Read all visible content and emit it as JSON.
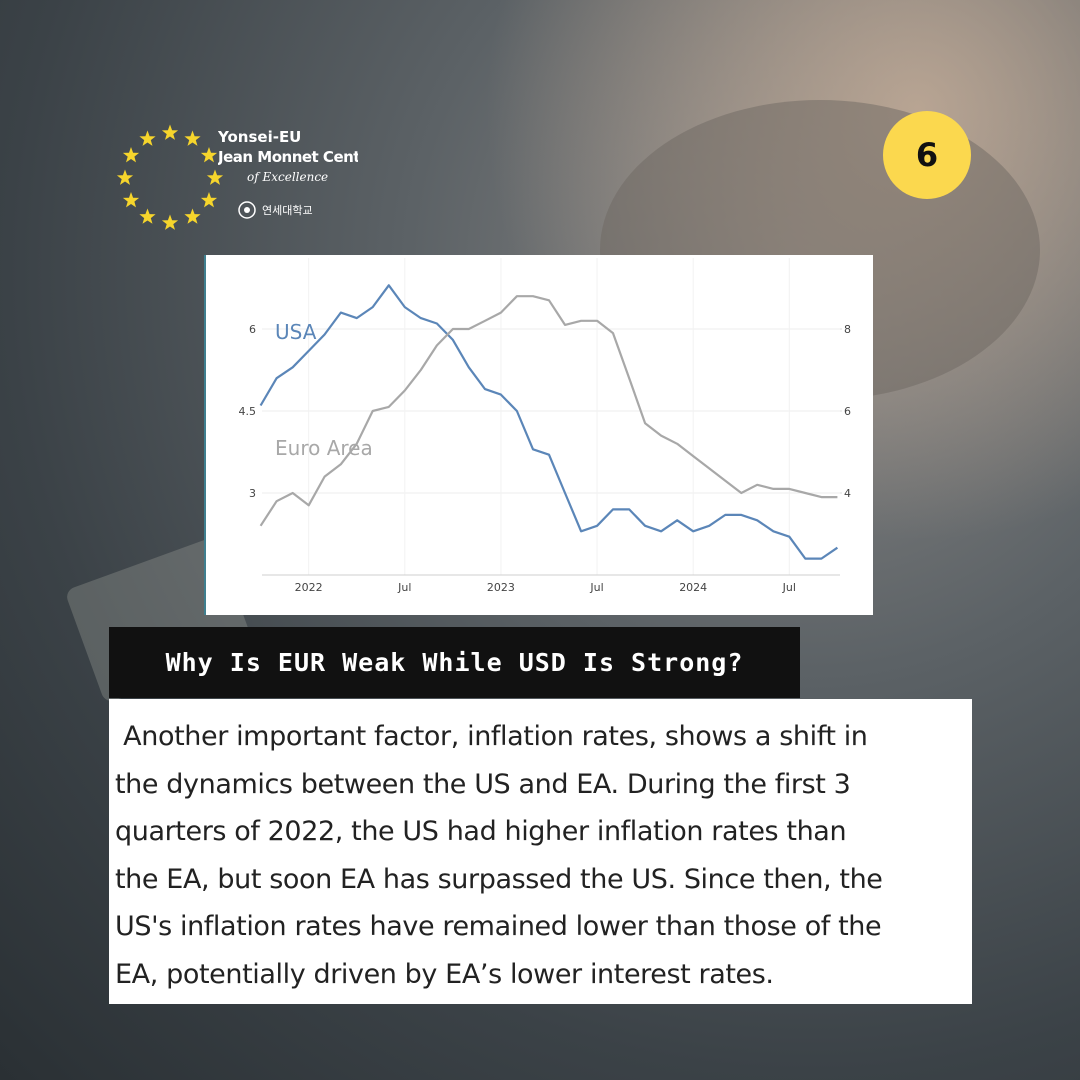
{
  "logo": {
    "line1": "Yonsei-EU",
    "line2": "Jean Monnet Centre",
    "line3": "of Excellence",
    "university": "연세대학교"
  },
  "page_number": "6",
  "chart_data": {
    "type": "line",
    "x": [
      2021.75,
      2021.833,
      2021.917,
      2022,
      2022.083,
      2022.167,
      2022.25,
      2022.333,
      2022.417,
      2022.5,
      2022.583,
      2022.667,
      2022.75,
      2022.833,
      2022.917,
      2023,
      2023.083,
      2023.167,
      2023.25,
      2023.333,
      2023.417,
      2023.5,
      2023.583,
      2023.667,
      2023.75,
      2023.833,
      2023.917,
      2024,
      2024.083,
      2024.167,
      2024.25,
      2024.333,
      2024.417,
      2024.5,
      2024.583,
      2024.667,
      2024.75
    ],
    "series": [
      {
        "name": "USA",
        "color": "#5b86b8",
        "values": [
          4.6,
          5.1,
          5.3,
          5.6,
          5.9,
          6.3,
          6.2,
          6.4,
          6.8,
          6.4,
          6.2,
          6.1,
          5.8,
          5.3,
          4.9,
          4.8,
          4.5,
          3.8,
          3.7,
          3.0,
          2.3,
          2.4,
          2.7,
          2.7,
          2.4,
          2.3,
          2.5,
          2.3,
          2.4,
          2.6,
          2.6,
          2.5,
          2.3,
          2.2,
          1.8,
          1.8,
          2.0
        ]
      },
      {
        "name": "Euro Area",
        "color": "#a8a8a8",
        "axis": "y2",
        "values": [
          3.2,
          3.8,
          4.0,
          3.7,
          4.4,
          4.7,
          5.2,
          6.0,
          6.1,
          6.5,
          7.0,
          7.6,
          8.0,
          8.0,
          8.2,
          8.4,
          8.8,
          8.8,
          8.7,
          8.1,
          8.2,
          8.2,
          7.9,
          6.8,
          5.7,
          5.4,
          5.2,
          4.9,
          4.6,
          4.3,
          4.0,
          4.2,
          4.1,
          4.1,
          4.0,
          3.9,
          3.9
        ]
      }
    ],
    "xlim": [
      2021.7,
      2024.8
    ],
    "xticks": [
      2022,
      {
        "value": 2022.5,
        "label": "Jul"
      },
      2023,
      {
        "value": 2023.5,
        "label": "Jul"
      },
      2024,
      {
        "value": 2024.5,
        "label": "Jul"
      }
    ],
    "ylim": [
      1.5,
      7.2
    ],
    "yticks": [
      3,
      4.5,
      6
    ],
    "y2lim": [
      2,
      9.6
    ],
    "y2ticks": [
      4,
      6,
      8
    ],
    "grid": true
  },
  "heading": "Why Is EUR Weak While USD Is Strong?",
  "body": {
    "lines": [
      " Another important factor, inflation rates, shows a shift in",
      "the dynamics between the US and EA. During the first 3",
      "quarters of 2022, the US had higher inflation rates than",
      "the EA, but soon EA has surpassed the US. Since then, the",
      "US's inflation rates have remained lower than those of the",
      "EA, potentially driven by EA’s lower interest rates."
    ]
  }
}
